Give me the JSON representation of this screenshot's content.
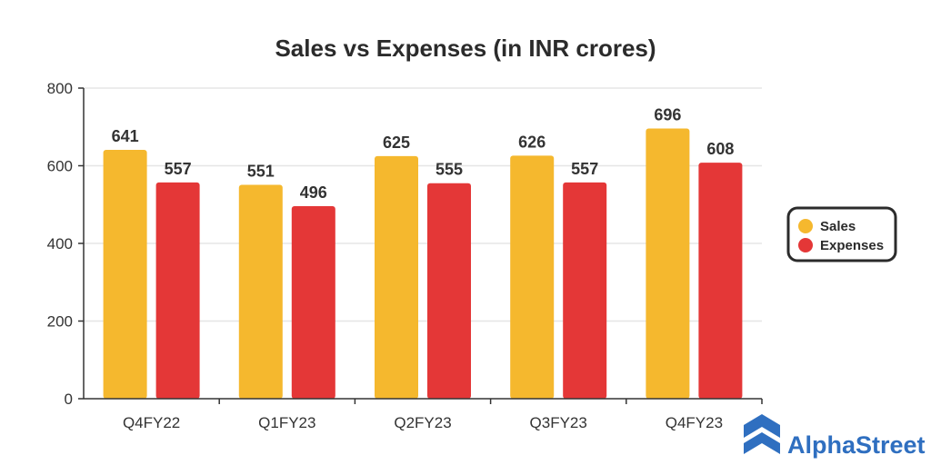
{
  "chart_data": {
    "type": "bar",
    "title": "Sales vs Expenses (in INR crores)",
    "categories": [
      "Q4FY22",
      "Q1FY23",
      "Q2FY23",
      "Q3FY23",
      "Q4FY23"
    ],
    "series": [
      {
        "name": "Sales",
        "color": "#f5b82e",
        "values": [
          641,
          551,
          625,
          626,
          696
        ]
      },
      {
        "name": "Expenses",
        "color": "#e43737",
        "values": [
          557,
          496,
          555,
          557,
          608
        ]
      }
    ],
    "xlabel": "",
    "ylabel": "",
    "ylim": [
      0,
      800
    ],
    "yticks": [
      0,
      200,
      400,
      600,
      800
    ],
    "grid": true,
    "legend_position": "right"
  },
  "brand": {
    "name": "AlphaStreet",
    "color": "#2f6fc0",
    "icon": "alphastreet-logo-icon"
  },
  "colors": {
    "axis": "#333333",
    "grid": "#e6e6e6",
    "legend_border": "#2b2b2b"
  }
}
